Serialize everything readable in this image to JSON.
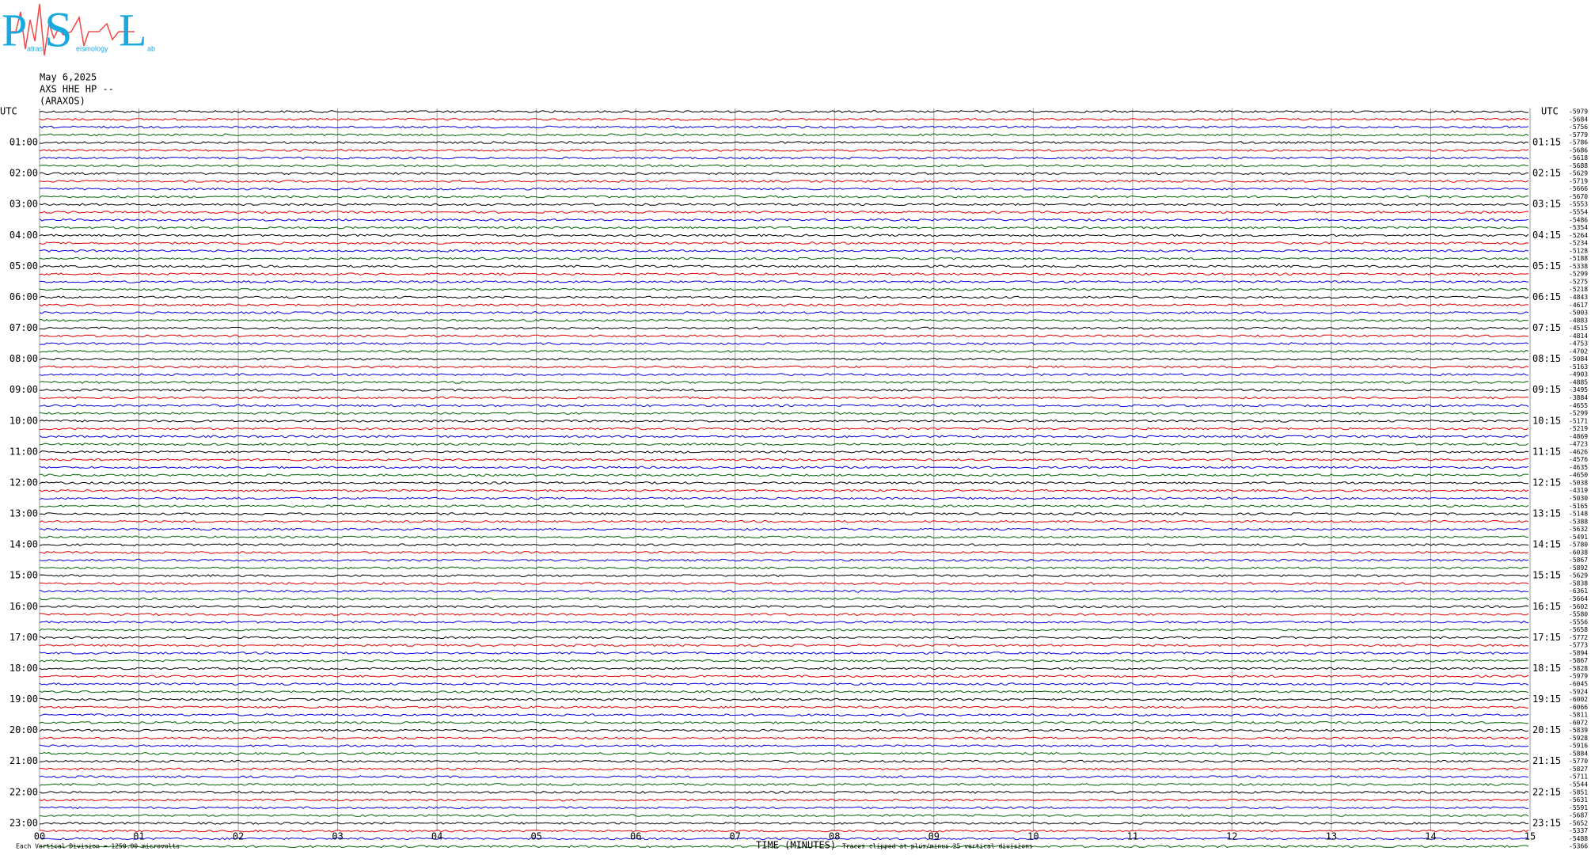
{
  "logo": {
    "letters": [
      "P",
      "S",
      "L"
    ],
    "words": [
      "atras",
      "eismology",
      "ab"
    ]
  },
  "header": {
    "date": "May 6,2025",
    "station": "AXS HHE HP --",
    "location": "(ARAXOS)"
  },
  "left_labels": [
    "UTC",
    "01:00",
    "02:00",
    "03:00",
    "04:00",
    "05:00",
    "06:00",
    "07:00",
    "08:00",
    "09:00",
    "10:00",
    "11:00",
    "12:00",
    "13:00",
    "14:00",
    "15:00",
    "16:00",
    "17:00",
    "18:00",
    "19:00",
    "20:00",
    "21:00",
    "22:00",
    "23:00"
  ],
  "right_labels": [
    "UTC",
    "01:15",
    "02:15",
    "03:15",
    "04:15",
    "05:15",
    "06:15",
    "07:15",
    "08:15",
    "09:15",
    "10:15",
    "11:15",
    "12:15",
    "13:15",
    "14:15",
    "15:15",
    "16:15",
    "17:15",
    "18:15",
    "19:15",
    "20:15",
    "21:15",
    "22:15",
    "23:15"
  ],
  "trace_offsets": [
    -5979,
    -5684,
    -5756,
    -5779,
    -5786,
    -5686,
    -5618,
    -5688,
    -5629,
    -5719,
    -5666,
    -5670,
    -5553,
    -5554,
    -5486,
    -5354,
    -5264,
    -5234,
    -5128,
    -5188,
    -5338,
    -5299,
    -5275,
    -5218,
    -4843,
    -4617,
    -5003,
    -4883,
    -4515,
    -4814,
    -4753,
    -4702,
    -5084,
    -5163,
    -4903,
    -4885,
    -3495,
    -3884,
    -4655,
    -5299,
    -5171,
    -5219,
    -4869,
    -4723,
    -4626,
    -4576,
    -4635,
    -4650,
    -5038,
    -4319,
    -5030,
    -5165,
    -5148,
    -5388,
    -5632,
    -5491,
    -5780,
    -6038,
    -5867,
    -5892,
    -5629,
    -5838,
    -6361,
    -5664,
    -5602,
    -5580,
    -5556,
    -5658,
    -5772,
    -5773,
    -5894,
    -5867,
    -5828,
    -5979,
    -6045,
    -5924,
    -6002,
    -6066,
    -5811,
    -6072,
    -5839,
    -5928,
    -5916,
    -5884,
    -5770,
    -5827,
    -5711,
    -5544,
    -5851,
    -5631,
    -5591,
    -5687,
    -5652,
    -5337,
    -5488,
    -5366
  ],
  "time_axis": {
    "ticks": [
      "00",
      "01",
      "02",
      "03",
      "04",
      "05",
      "06",
      "07",
      "08",
      "09",
      "10",
      "11",
      "12",
      "13",
      "14",
      "15"
    ],
    "label": "TIME (MINUTES)"
  },
  "footer": {
    "scale": "Each Vertical Division = 1250.00 microvolts",
    "clip": "Traces clipped at plus/minus 25 vertical divisions"
  }
}
